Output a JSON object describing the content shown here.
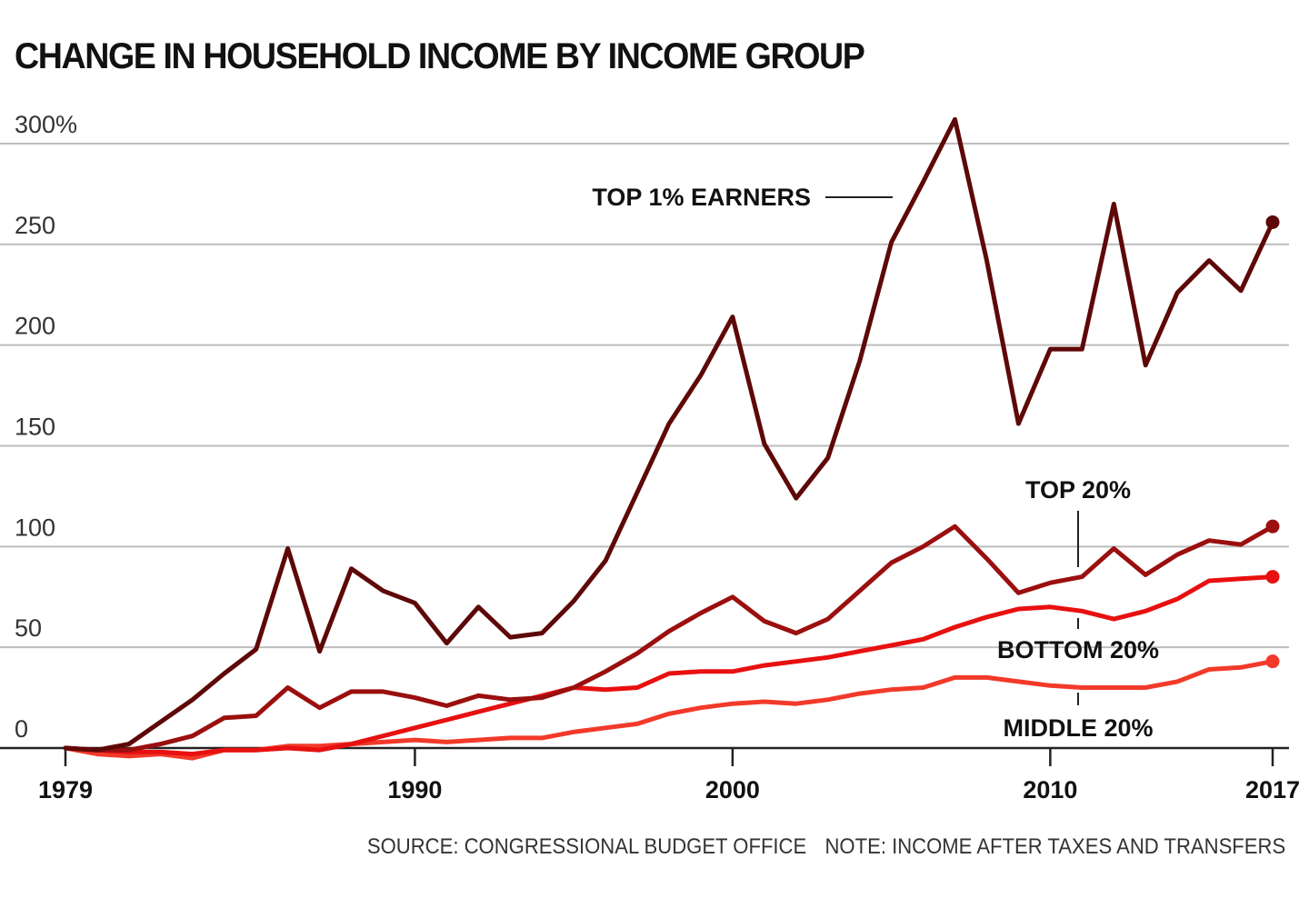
{
  "chart_data": {
    "type": "line",
    "title": "CHANGE IN HOUSEHOLD INCOME BY INCOME GROUP",
    "source": "SOURCE: CONGRESSIONAL BUDGET OFFICE",
    "note": "NOTE: INCOME AFTER TAXES AND TRANSFERS",
    "xlabel": "",
    "ylabel": "",
    "xlim": [
      1979,
      2017
    ],
    "ylim": [
      0,
      300
    ],
    "x_ticks": [
      {
        "value": 1979,
        "label": "1979"
      },
      {
        "value": 1990,
        "label": "1990"
      },
      {
        "value": 2000,
        "label": "2000"
      },
      {
        "value": 2010,
        "label": "2010"
      },
      {
        "value": 2017,
        "label": "2017"
      }
    ],
    "y_ticks": [
      {
        "value": 0,
        "label": "0"
      },
      {
        "value": 50,
        "label": "50"
      },
      {
        "value": 100,
        "label": "100"
      },
      {
        "value": 150,
        "label": "150"
      },
      {
        "value": 200,
        "label": "200"
      },
      {
        "value": 250,
        "label": "250"
      },
      {
        "value": 300,
        "label": "300%"
      }
    ],
    "grid": true,
    "legend": "direct labels",
    "x": [
      1979,
      1980,
      1981,
      1982,
      1983,
      1984,
      1985,
      1986,
      1987,
      1988,
      1989,
      1990,
      1991,
      1992,
      1993,
      1994,
      1995,
      1996,
      1997,
      1998,
      1999,
      2000,
      2001,
      2002,
      2003,
      2004,
      2005,
      2006,
      2007,
      2008,
      2009,
      2010,
      2011,
      2012,
      2013,
      2014,
      2015,
      2016,
      2017
    ],
    "series": [
      {
        "name": "TOP 1% EARNERS",
        "color": "#5e0808",
        "values": [
          0,
          -1,
          2,
          13,
          24,
          37,
          49,
          99,
          48,
          89,
          78,
          72,
          52,
          70,
          55,
          57,
          73,
          93,
          127,
          161,
          185,
          214,
          151,
          124,
          144,
          192,
          251,
          281,
          312,
          242,
          161,
          198,
          198,
          270,
          190,
          226,
          242,
          227,
          261
        ]
      },
      {
        "name": "TOP 20%",
        "color": "#9b0f0f",
        "values": [
          0,
          -1,
          -1,
          2,
          6,
          15,
          16,
          30,
          20,
          28,
          28,
          25,
          21,
          26,
          24,
          25,
          30,
          38,
          47,
          58,
          67,
          75,
          63,
          57,
          64,
          78,
          92,
          100,
          110,
          94,
          77,
          82,
          85,
          99,
          86,
          96,
          103,
          101,
          110
        ]
      },
      {
        "name": "BOTTOM 20%",
        "color": "#e81010",
        "values": [
          0,
          -1,
          -2,
          -2,
          -3,
          -1,
          -1,
          0,
          -1,
          2,
          6,
          10,
          14,
          18,
          22,
          26,
          30,
          29,
          30,
          37,
          38,
          38,
          41,
          43,
          45,
          48,
          51,
          54,
          60,
          65,
          69,
          70,
          68,
          64,
          68,
          74,
          83,
          84,
          85
        ]
      },
      {
        "name": "MIDDLE 20%",
        "color": "#f23a2a",
        "values": [
          0,
          -3,
          -4,
          -3,
          -5,
          -1,
          -1,
          1,
          1,
          2,
          3,
          4,
          3,
          4,
          5,
          5,
          8,
          10,
          12,
          17,
          20,
          22,
          23,
          22,
          24,
          27,
          29,
          30,
          35,
          35,
          33,
          31,
          30,
          30,
          30,
          33,
          39,
          40,
          43
        ]
      }
    ]
  }
}
